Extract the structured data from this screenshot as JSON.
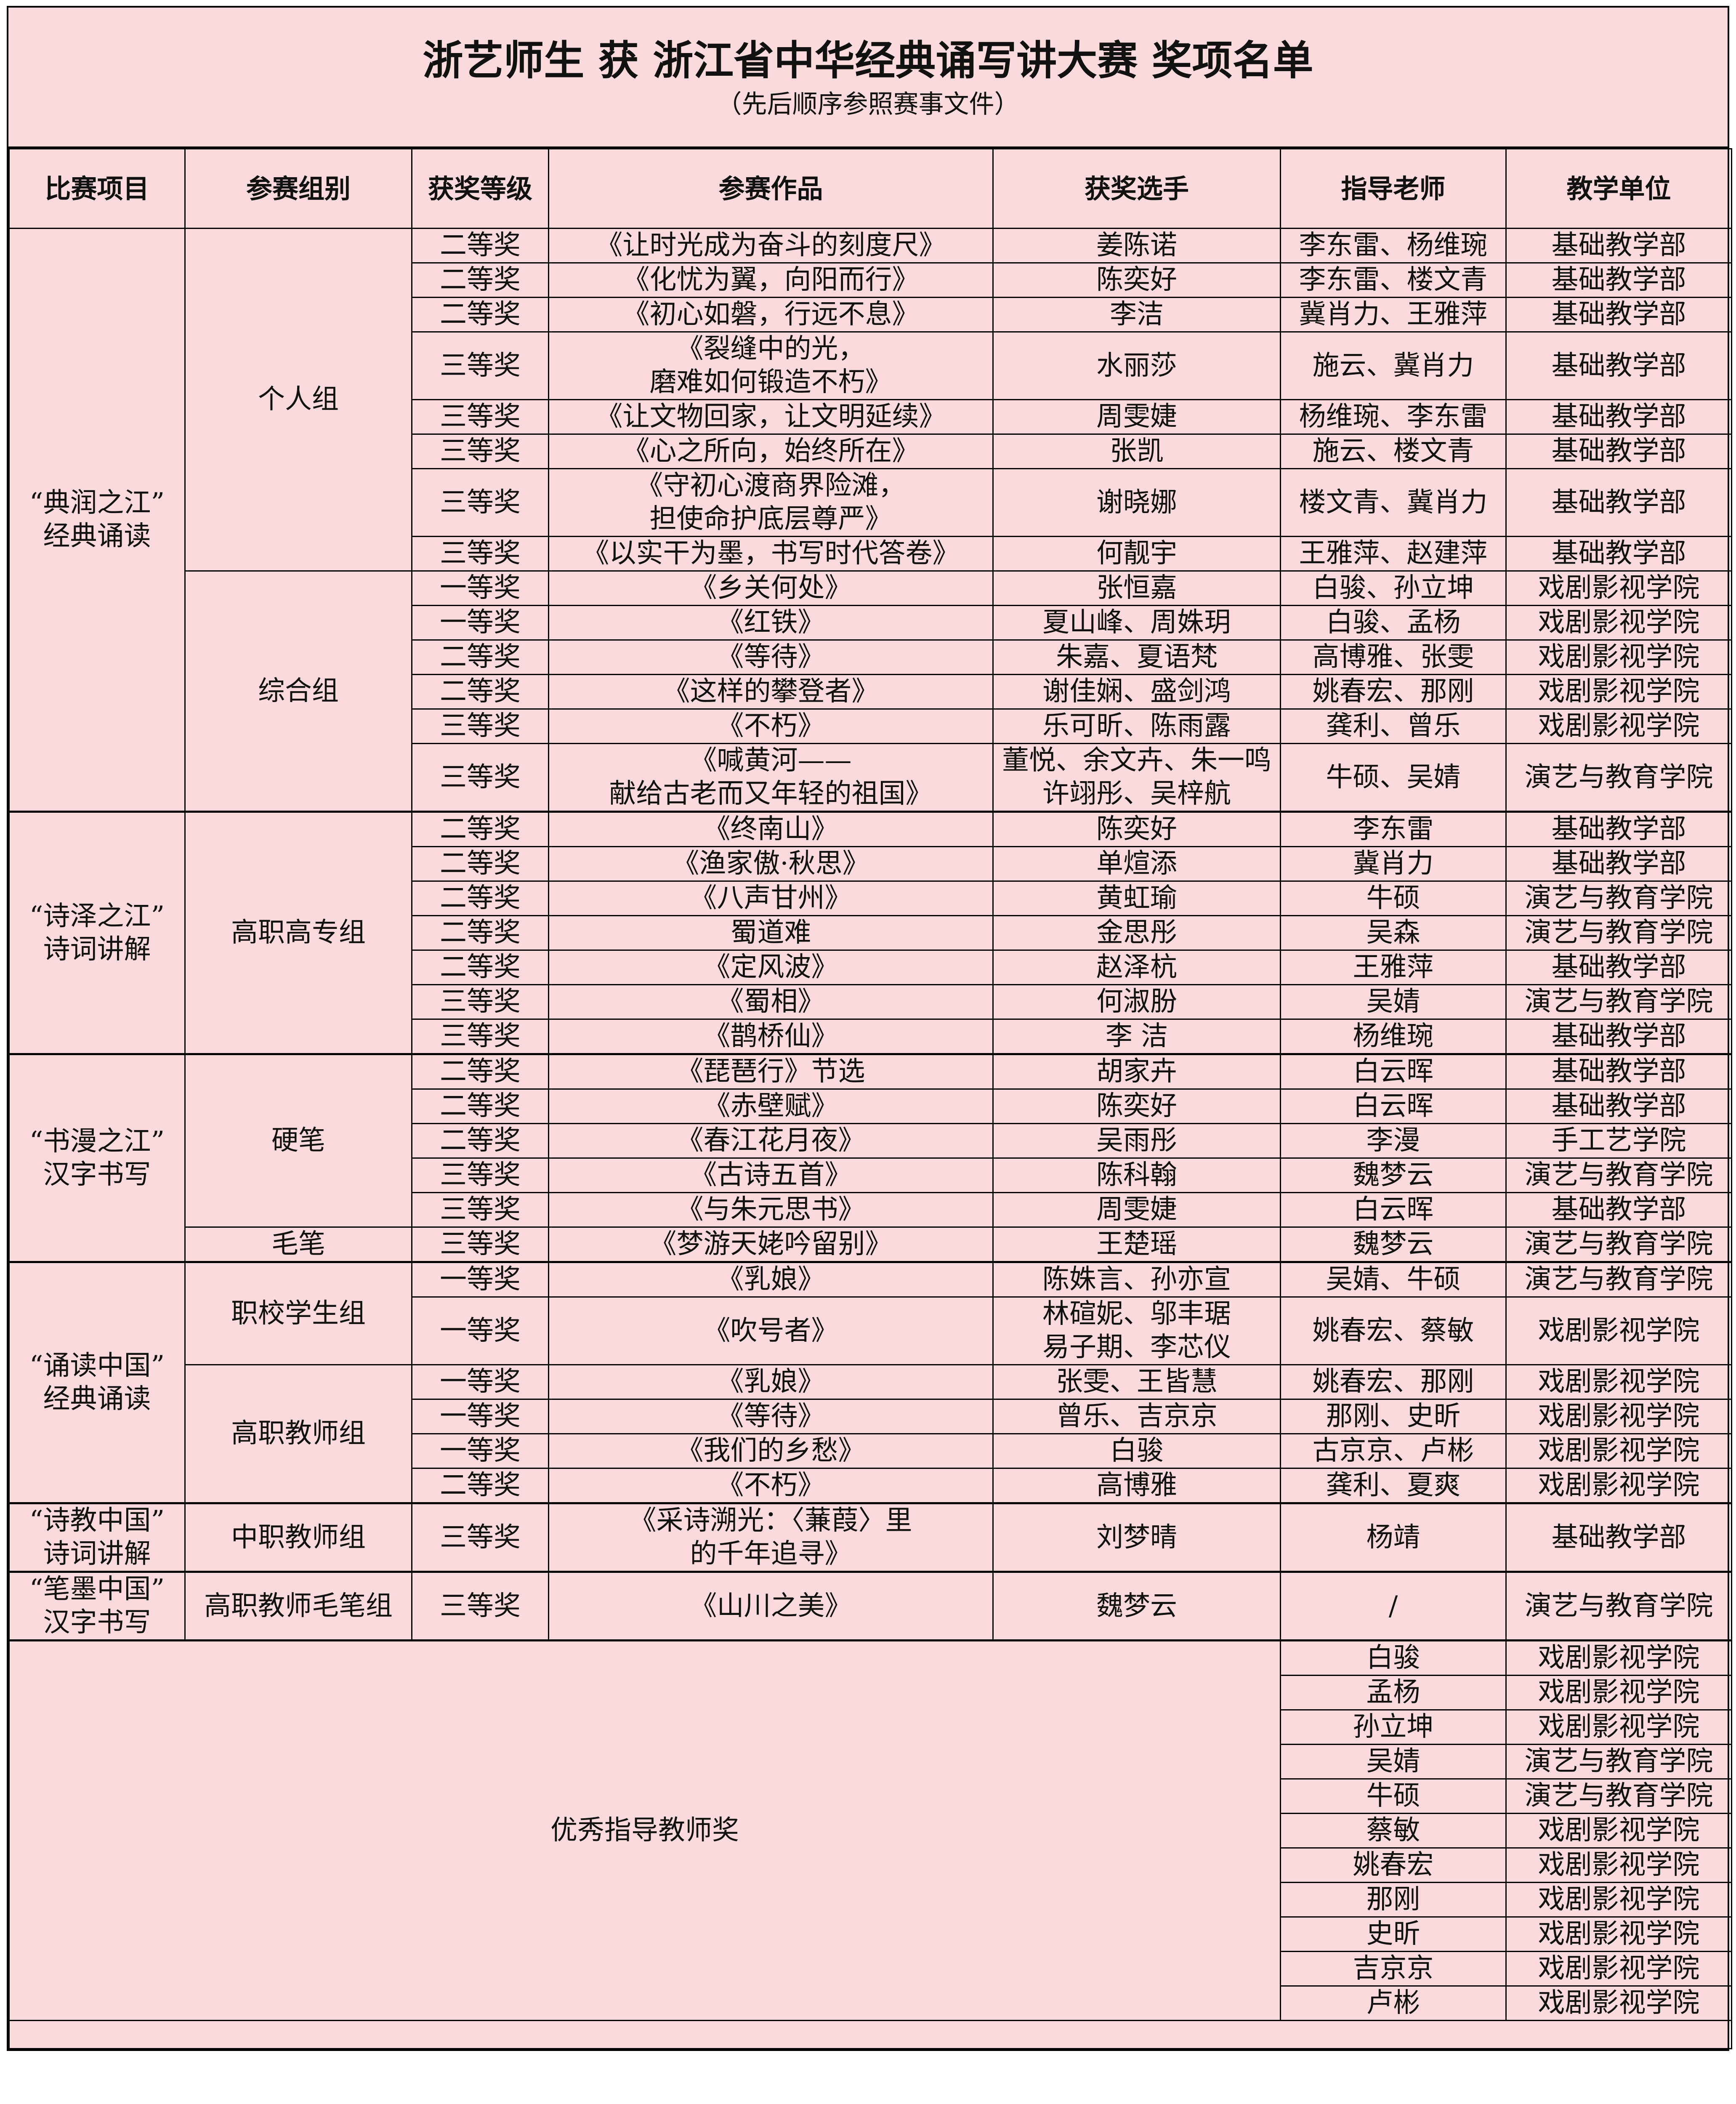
{
  "title": "浙艺师生 获 浙江省中华经典诵写讲大赛 奖项名单",
  "subtitle": "（先后顺序参照赛事文件）",
  "headers": [
    "比赛项目",
    "参赛组别",
    "获奖等级",
    "参赛作品",
    "获奖选手",
    "指导老师",
    "教学单位"
  ],
  "background_color": "#fadadd",
  "sections": [
    {
      "category": "“典润之江”\n经典诵读",
      "groups": [
        {
          "name": "个人组",
          "rows": [
            [
              "二等奖",
              "《让时光成为奋斗的刻度尺》",
              "姜陈诺",
              "李东雷、杨维琬",
              "基础教学部"
            ],
            [
              "二等奖",
              "《化忧为翼，向阳而行》",
              "陈奕好",
              "李东雷、楼文青",
              "基础教学部"
            ],
            [
              "二等奖",
              "《初心如磐，行远不息》",
              "李洁",
              "冀肖力、王雅萍",
              "基础教学部"
            ],
            [
              "三等奖",
              "《裂缝中的光，\n磨难如何锻造不朽》",
              "水丽莎",
              "施云、冀肖力",
              "基础教学部"
            ],
            [
              "三等奖",
              "《让文物回家，让文明延续》",
              "周雯婕",
              "杨维琬、李东雷",
              "基础教学部"
            ],
            [
              "三等奖",
              "《心之所向，始终所在》",
              "张凯",
              "施云、楼文青",
              "基础教学部"
            ],
            [
              "三等奖",
              "《守初心渡商界险滩，\n担使命护底层尊严》",
              "谢晓娜",
              "楼文青、冀肖力",
              "基础教学部"
            ],
            [
              "三等奖",
              "《以实干为墨，书写时代答卷》",
              "何靓宇",
              "王雅萍、赵建萍",
              "基础教学部"
            ]
          ]
        },
        {
          "name": "综合组",
          "rows": [
            [
              "一等奖",
              "《乡关何处》",
              "张恒嘉",
              "白骏、孙立坤",
              "戏剧影视学院"
            ],
            [
              "一等奖",
              "《红铁》",
              "夏山峰、周姝玥",
              "白骏、孟杨",
              "戏剧影视学院"
            ],
            [
              "二等奖",
              "《等待》",
              "朱嘉、夏语梵",
              "高博雅、张雯",
              "戏剧影视学院"
            ],
            [
              "二等奖",
              "《这样的攀登者》",
              "谢佳娴、盛剑鸿",
              "姚春宏、那刚",
              "戏剧影视学院"
            ],
            [
              "三等奖",
              "《不朽》",
              "乐可昕、陈雨露",
              "龚利、曾乐",
              "戏剧影视学院"
            ],
            [
              "三等奖",
              "《喊黄河——\n献给古老而又年轻的祖国》",
              "董悦、余文卉、朱一鸣\n许翊彤、吴梓航",
              "牛硕、吴婧",
              "演艺与教育学院"
            ]
          ]
        }
      ]
    },
    {
      "category": "“诗泽之江”\n诗词讲解",
      "groups": [
        {
          "name": "高职高专组",
          "rows": [
            [
              "二等奖",
              "《终南山》",
              "陈奕好",
              "李东雷",
              "基础教学部"
            ],
            [
              "二等奖",
              "《渔家傲·秋思》",
              "单煊添",
              "冀肖力",
              "基础教学部"
            ],
            [
              "二等奖",
              "《八声甘州》",
              "黄虹瑜",
              "牛硕",
              "演艺与教育学院"
            ],
            [
              "二等奖",
              "蜀道难",
              "金思彤",
              "吴森",
              "演艺与教育学院"
            ],
            [
              "二等奖",
              "《定风波》",
              "赵泽杭",
              "王雅萍",
              "基础教学部"
            ],
            [
              "三等奖",
              "《蜀相》",
              "何淑朌",
              "吴婧",
              "演艺与教育学院"
            ],
            [
              "三等奖",
              "《鹊桥仙》",
              "李  洁",
              "杨维琬",
              "基础教学部"
            ]
          ]
        }
      ]
    },
    {
      "category": "“书漫之江”\n汉字书写",
      "groups": [
        {
          "name": "硬笔",
          "rows": [
            [
              "二等奖",
              "《琵琶行》节选",
              "胡家卉",
              "白云晖",
              "基础教学部"
            ],
            [
              "二等奖",
              "《赤壁赋》",
              "陈奕好",
              "白云晖",
              "基础教学部"
            ],
            [
              "二等奖",
              "《春江花月夜》",
              "吴雨彤",
              "李漫",
              "手工艺学院"
            ],
            [
              "三等奖",
              "《古诗五首》",
              "陈科翰",
              "魏梦云",
              "演艺与教育学院"
            ],
            [
              "三等奖",
              "《与朱元思书》",
              "周雯婕",
              "白云晖",
              "基础教学部"
            ]
          ]
        },
        {
          "name": "毛笔",
          "rows": [
            [
              "三等奖",
              "《梦游天姥吟留别》",
              "王楚瑶",
              "魏梦云",
              "演艺与教育学院"
            ]
          ]
        }
      ]
    },
    {
      "category": "“诵读中国”\n经典诵读",
      "groups": [
        {
          "name": "职校学生组",
          "rows": [
            [
              "一等奖",
              "《乳娘》",
              "陈姝言、孙亦宣",
              "吴婧、牛硕",
              "演艺与教育学院"
            ],
            [
              "一等奖",
              "《吹号者》",
              "林碹妮、邬丰琚\n易子期、李芯仪",
              "姚春宏、蔡敏",
              "戏剧影视学院"
            ]
          ]
        },
        {
          "name": "高职教师组",
          "rows": [
            [
              "一等奖",
              "《乳娘》",
              "张雯、王皆慧",
              "姚春宏、那刚",
              "戏剧影视学院"
            ],
            [
              "一等奖",
              "《等待》",
              "曾乐、吉京京",
              "那刚、史昕",
              "戏剧影视学院"
            ],
            [
              "一等奖",
              "《我们的乡愁》",
              "白骏",
              "古京京、卢彬",
              "戏剧影视学院"
            ],
            [
              "二等奖",
              "《不朽》",
              "高博雅",
              "龚利、夏爽",
              "戏剧影视学院"
            ]
          ]
        }
      ]
    },
    {
      "category": "“诗教中国”\n诗词讲解",
      "groups": [
        {
          "name": "中职教师组",
          "rows": [
            [
              "三等奖",
              "《采诗溯光：〈蒹葭〉里\n的千年追寻》",
              "刘梦晴",
              "杨靖",
              "基础教学部"
            ]
          ]
        }
      ]
    },
    {
      "category": "“笔墨中国”\n汉字书写",
      "groups": [
        {
          "name": "高职教师毛笔组",
          "rows": [
            [
              "三等奖",
              "《山川之美》",
              "魏梦云",
              "/",
              "演艺与教育学院"
            ]
          ]
        }
      ]
    }
  ],
  "excellent_award": {
    "label": "优秀指导教师奖",
    "teachers": [
      [
        "白骏",
        "戏剧影视学院"
      ],
      [
        "孟杨",
        "戏剧影视学院"
      ],
      [
        "孙立坤",
        "戏剧影视学院"
      ],
      [
        "吴婧",
        "演艺与教育学院"
      ],
      [
        "牛硕",
        "演艺与教育学院"
      ],
      [
        "蔡敏",
        "戏剧影视学院"
      ],
      [
        "姚春宏",
        "戏剧影视学院"
      ],
      [
        "那刚",
        "戏剧影视学院"
      ],
      [
        "史昕",
        "戏剧影视学院"
      ],
      [
        "吉京京",
        "戏剧影视学院"
      ],
      [
        "卢彬",
        "戏剧影视学院"
      ]
    ]
  }
}
